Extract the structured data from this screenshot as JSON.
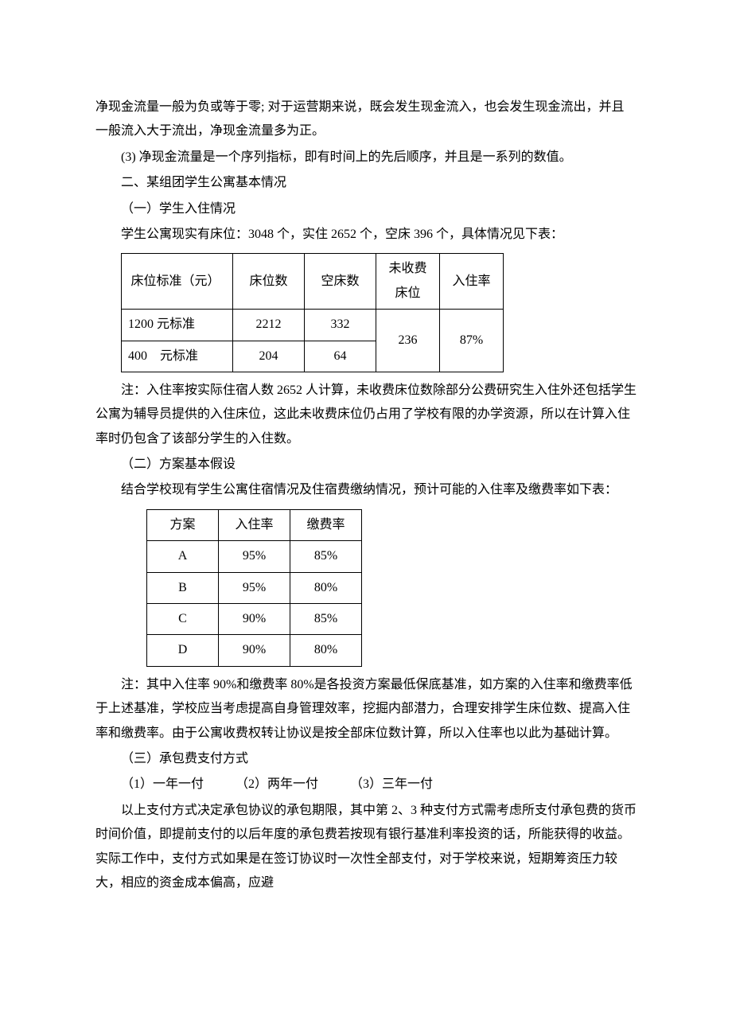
{
  "paragraphs": {
    "p1": "净现金流量一般为负或等于零; 对于运营期来说，既会发生现金流入，也会发生现金流出，并且一般流入大于流出，净现金流量多为正。",
    "p2": "(3) 净现金流量是一个序列指标，即有时间上的先后顺序，并且是一系列的数值。",
    "p3": "二、某组团学生公寓基本情况",
    "p4": "（一）学生入住情况",
    "p5": "学生公寓现实有床位：3048 个，实住 2652 个，空床 396 个，具体情况见下表：",
    "p6": "注：入住率按实际住宿人数 2652 人计算，未收费床位数除部分公费研究生入住外还包括学生公寓为辅导员提供的入住床位，这此未收费床位仍占用了学校有限的办学资源，所以在计算入住率时仍包含了该部分学生的入住数。",
    "p7": "（二）方案基本假设",
    "p8": "结合学校现有学生公寓住宿情况及住宿费缴纳情况，预计可能的入住率及缴费率如下表：",
    "p9": "注：其中入住率 90%和缴费率 80%是各投资方案最低保底基准，如方案的入住率和缴费率低于上述基准，学校应当考虑提高自身管理效率，挖掘内部潜力，合理安排学生床位数、提高入住率和缴费率。由于公寓收费权转让协议是按全部床位数计算，所以入住率也以此为基础计算。",
    "p10": "（三）承包费支付方式",
    "p11": "（1）一年一付　　　（2）两年一付　　　（3）三年一付",
    "p12": "以上支付方式决定承包协议的承包期限，其中第 2、3 种支付方式需考虑所支付承包费的货币时间价值，即提前支付的以后年度的承包费若按现有银行基准利率投资的话，所能获得的收益。实际工作中，支付方式如果是在签订协议时一次性全部支付，对于学校来说，短期筹资压力较大，相应的资金成本偏高，应避"
  },
  "table1": {
    "headers": {
      "c1": "床位标准（元）",
      "c2": "床位数",
      "c3": "空床数",
      "c4": "未收费床位",
      "c5": "入住率"
    },
    "rows": [
      {
        "c1": "1200 元标准",
        "c2": "2212",
        "c3": "332"
      },
      {
        "c1": "400　元标准",
        "c2": "204",
        "c3": "64"
      }
    ],
    "merged": {
      "c4": "236",
      "c5": "87%"
    },
    "col_widths": [
      "140px",
      "90px",
      "90px",
      "80px",
      "80px"
    ]
  },
  "table2": {
    "headers": {
      "c1": "方案",
      "c2": "入住率",
      "c3": "缴费率"
    },
    "rows": [
      {
        "c1": "A",
        "c2": "95%",
        "c3": "85%"
      },
      {
        "c1": "B",
        "c2": "95%",
        "c3": "80%"
      },
      {
        "c1": "C",
        "c2": "90%",
        "c3": "85%"
      },
      {
        "c1": "D",
        "c2": "90%",
        "c3": "80%"
      }
    ],
    "col_widths": [
      "90px",
      "90px",
      "90px"
    ]
  }
}
